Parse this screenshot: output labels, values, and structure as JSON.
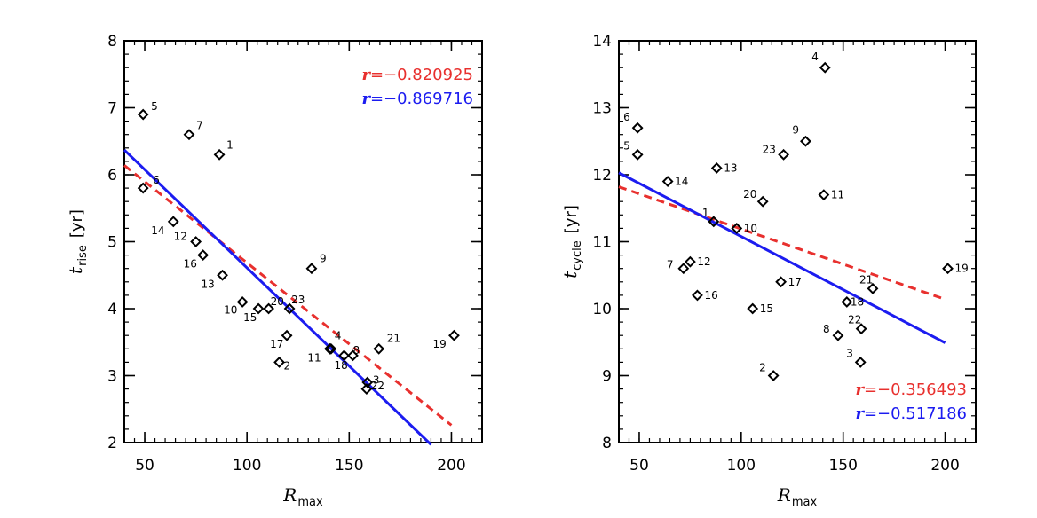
{
  "chart_data": [
    {
      "type": "scatter",
      "xlabel": "R",
      "xlabel_sub": "max",
      "ylabel": "t",
      "ylabel_sub": "rise",
      "ylabel_unit": "[yr]",
      "xlim": [
        40,
        215
      ],
      "ylim": [
        2,
        8
      ],
      "xticks": [
        50,
        100,
        150,
        200
      ],
      "yticks": [
        2,
        3,
        4,
        5,
        6,
        7,
        8
      ],
      "points": [
        {
          "id": "1",
          "x": 86.5,
          "y": 6.3
        },
        {
          "id": "2",
          "x": 115.8,
          "y": 3.2
        },
        {
          "id": "3",
          "x": 158.5,
          "y": 2.8
        },
        {
          "id": "4",
          "x": 141.1,
          "y": 3.4
        },
        {
          "id": "5",
          "x": 49.2,
          "y": 6.9
        },
        {
          "id": "6",
          "x": 49.2,
          "y": 5.8
        },
        {
          "id": "7",
          "x": 71.7,
          "y": 6.6
        },
        {
          "id": "8",
          "x": 147.5,
          "y": 3.3
        },
        {
          "id": "9",
          "x": 131.6,
          "y": 4.6
        },
        {
          "id": "10",
          "x": 97.8,
          "y": 4.1
        },
        {
          "id": "11",
          "x": 140.5,
          "y": 3.4
        },
        {
          "id": "12",
          "x": 75.0,
          "y": 5.0
        },
        {
          "id": "13",
          "x": 88.0,
          "y": 4.5
        },
        {
          "id": "14",
          "x": 64.0,
          "y": 5.3
        },
        {
          "id": "15",
          "x": 105.6,
          "y": 4.0
        },
        {
          "id": "16",
          "x": 78.5,
          "y": 4.8
        },
        {
          "id": "17",
          "x": 119.5,
          "y": 3.6
        },
        {
          "id": "18",
          "x": 151.8,
          "y": 3.3
        },
        {
          "id": "19",
          "x": 201.3,
          "y": 3.6
        },
        {
          "id": "20",
          "x": 110.6,
          "y": 4.0
        },
        {
          "id": "21",
          "x": 164.5,
          "y": 3.4
        },
        {
          "id": "22",
          "x": 158.9,
          "y": 2.9
        },
        {
          "id": "23",
          "x": 120.8,
          "y": 4.0
        }
      ],
      "fits": [
        {
          "name": "red-dashed",
          "color": "#e8302e",
          "dash": true,
          "x": [
            40,
            200
          ],
          "y": [
            6.14,
            2.26
          ],
          "r_label": "r",
          "r_value": "=−0.820925"
        },
        {
          "name": "blue-solid",
          "color": "#1c1cf0",
          "dash": false,
          "x": [
            40,
            190
          ],
          "y": [
            6.37,
            1.97
          ],
          "r_label": "r",
          "r_value": "=−0.869716"
        }
      ]
    },
    {
      "type": "scatter",
      "xlabel": "R",
      "xlabel_sub": "max",
      "ylabel": "t",
      "ylabel_sub": "cycle",
      "ylabel_unit": "[yr]",
      "xlim": [
        40,
        215
      ],
      "ylim": [
        8,
        14
      ],
      "xticks": [
        50,
        100,
        150,
        200
      ],
      "yticks": [
        8,
        9,
        10,
        11,
        12,
        13,
        14
      ],
      "points": [
        {
          "id": "1",
          "x": 86.5,
          "y": 11.3
        },
        {
          "id": "2",
          "x": 115.8,
          "y": 9.0
        },
        {
          "id": "3",
          "x": 158.5,
          "y": 9.2
        },
        {
          "id": "4",
          "x": 141.1,
          "y": 13.6
        },
        {
          "id": "5",
          "x": 49.2,
          "y": 12.3
        },
        {
          "id": "6",
          "x": 49.2,
          "y": 12.7
        },
        {
          "id": "7",
          "x": 71.7,
          "y": 10.6
        },
        {
          "id": "8",
          "x": 147.5,
          "y": 9.6
        },
        {
          "id": "9",
          "x": 131.6,
          "y": 12.5
        },
        {
          "id": "10",
          "x": 97.8,
          "y": 11.2
        },
        {
          "id": "11",
          "x": 140.5,
          "y": 11.7
        },
        {
          "id": "12",
          "x": 75.0,
          "y": 10.7
        },
        {
          "id": "13",
          "x": 88.0,
          "y": 12.1
        },
        {
          "id": "14",
          "x": 64.0,
          "y": 11.9
        },
        {
          "id": "15",
          "x": 105.6,
          "y": 10.0
        },
        {
          "id": "16",
          "x": 78.5,
          "y": 10.2
        },
        {
          "id": "17",
          "x": 119.5,
          "y": 10.4
        },
        {
          "id": "18",
          "x": 151.8,
          "y": 10.1
        },
        {
          "id": "19",
          "x": 201.3,
          "y": 10.6
        },
        {
          "id": "20",
          "x": 110.6,
          "y": 11.6
        },
        {
          "id": "21",
          "x": 164.5,
          "y": 10.3
        },
        {
          "id": "22",
          "x": 158.9,
          "y": 9.7
        },
        {
          "id": "23",
          "x": 120.8,
          "y": 12.3
        }
      ],
      "fits": [
        {
          "name": "red-dashed",
          "color": "#e8302e",
          "dash": true,
          "x": [
            40,
            200
          ],
          "y": [
            11.82,
            10.14
          ],
          "r_label": "r",
          "r_value": "=−0.356493"
        },
        {
          "name": "blue-solid",
          "color": "#1c1cf0",
          "dash": false,
          "x": [
            40,
            200
          ],
          "y": [
            12.03,
            9.49
          ],
          "r_label": "r",
          "r_value": "=−0.517186"
        }
      ]
    }
  ]
}
